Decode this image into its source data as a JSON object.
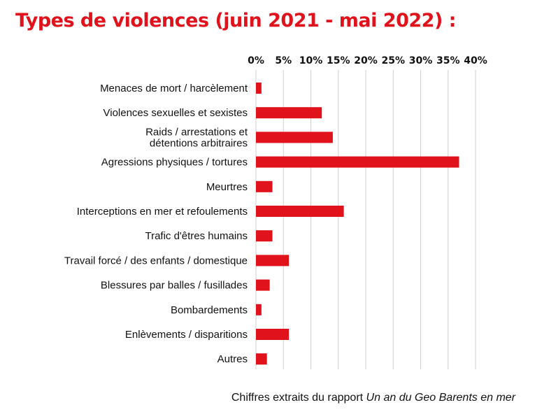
{
  "colors": {
    "accent": "#e0121b",
    "grid": "#cfcfcf",
    "text": "#111111"
  },
  "chart_data": {
    "type": "bar",
    "orientation": "horizontal",
    "title": "Types de violences (juin 2021 - mai 2022) :",
    "xlim": [
      0,
      40
    ],
    "ticks": [
      0,
      5,
      10,
      15,
      20,
      25,
      30,
      35,
      40
    ],
    "tick_labels": [
      "0%",
      "5%",
      "10%",
      "15%",
      "20%",
      "25%",
      "30%",
      "35%",
      "40%"
    ],
    "grid": true,
    "categories": [
      [
        "Menaces de mort / harcèlement"
      ],
      [
        "Violences sexuelles et sexistes"
      ],
      [
        "Raids / arrestations et",
        "détentions arbitraires"
      ],
      [
        "Agressions physiques / tortures"
      ],
      [
        "Meurtres"
      ],
      [
        "Interceptions en mer et refoulements"
      ],
      [
        "Trafic d'êtres humains"
      ],
      [
        "Travail forcé / des enfants / domestique"
      ],
      [
        "Blessures par balles / fusillades"
      ],
      [
        "Bombardements"
      ],
      [
        "Enlèvements / disparitions"
      ],
      [
        "Autres"
      ]
    ],
    "values": [
      1,
      12,
      14,
      37,
      3,
      16,
      3,
      6,
      2.5,
      1,
      6,
      2
    ]
  },
  "source": {
    "prefix": "Chiffres extraits du rapport ",
    "italic": "Un an du Geo Barents en mer"
  }
}
